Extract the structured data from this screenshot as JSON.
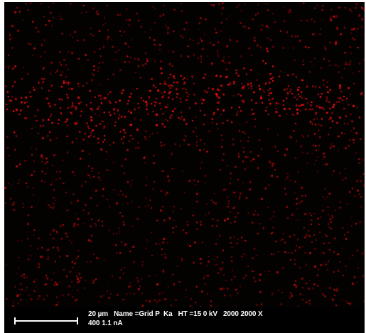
{
  "image": {
    "type": "EDS elemental map",
    "color": "#e01a1a",
    "background_color": "#040101"
  },
  "footer": {
    "scale_label": "20 µm",
    "name_field": "Name =Grid P  Ka",
    "ht_field": "HT =15 0 kV",
    "mag_field": "2000 2000 X",
    "line2": "400 1.1 nA"
  }
}
